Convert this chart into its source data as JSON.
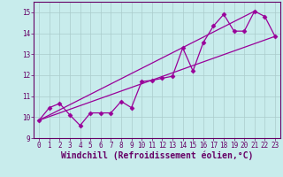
{
  "title": "",
  "xlabel": "Windchill (Refroidissement éolien,°C)",
  "ylabel": "",
  "bg_color": "#c8ecec",
  "line_color": "#990099",
  "grid_color": "#aacccc",
  "spine_color": "#660066",
  "xlim": [
    -0.5,
    23.5
  ],
  "ylim": [
    9,
    15.5
  ],
  "yticks": [
    9,
    10,
    11,
    12,
    13,
    14,
    15
  ],
  "xticks": [
    0,
    1,
    2,
    3,
    4,
    5,
    6,
    7,
    8,
    9,
    10,
    11,
    12,
    13,
    14,
    15,
    16,
    17,
    18,
    19,
    20,
    21,
    22,
    23
  ],
  "main_x": [
    0,
    1,
    2,
    3,
    4,
    5,
    6,
    7,
    8,
    9,
    10,
    11,
    12,
    13,
    14,
    15,
    16,
    17,
    18,
    19,
    20,
    21,
    22,
    23
  ],
  "main_y": [
    9.85,
    10.45,
    10.65,
    10.1,
    9.6,
    10.2,
    10.2,
    10.2,
    10.75,
    10.45,
    11.7,
    11.75,
    11.85,
    11.95,
    13.3,
    12.2,
    13.55,
    14.35,
    14.9,
    14.1,
    14.1,
    15.05,
    14.8,
    13.85
  ],
  "line1_x": [
    0,
    23
  ],
  "line1_y": [
    9.85,
    13.85
  ],
  "line2_x": [
    0,
    21
  ],
  "line2_y": [
    9.85,
    15.05
  ],
  "font_color": "#660066",
  "tick_fontsize": 5.5,
  "xlabel_fontsize": 7.0
}
